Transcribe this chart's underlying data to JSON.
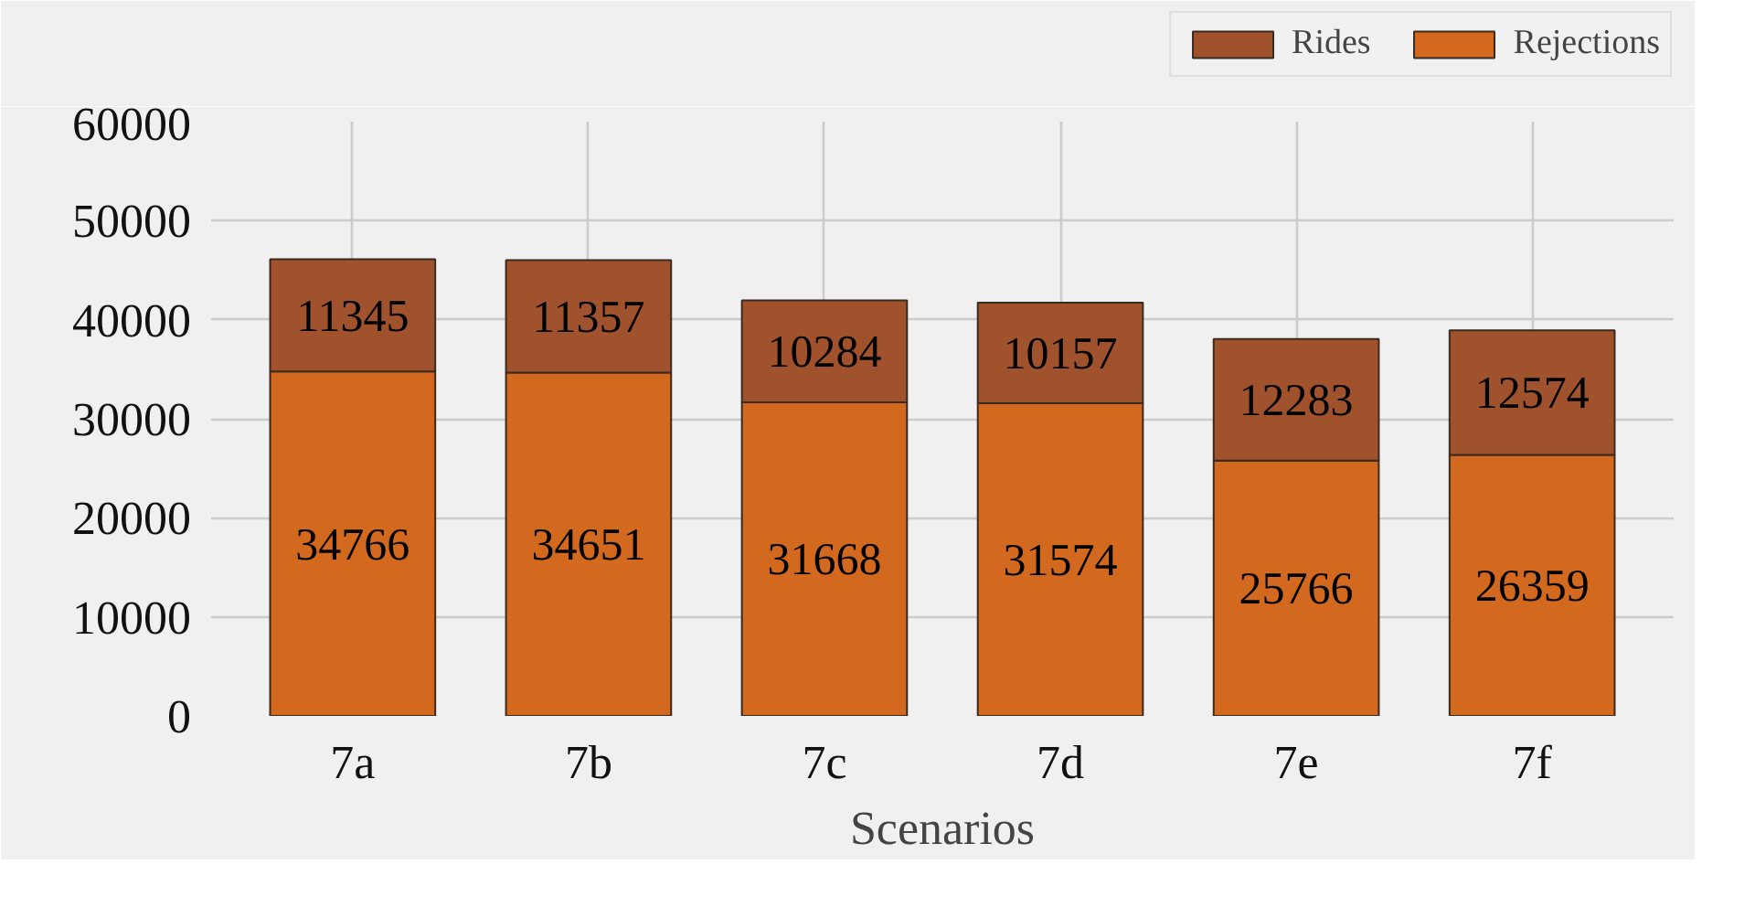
{
  "chart_data": {
    "type": "bar",
    "stacked": true,
    "xlabel": "Scenarios",
    "categories": [
      "7a",
      "7b",
      "7c",
      "7d",
      "7e",
      "7f"
    ],
    "series": [
      {
        "name": "Rejections",
        "color": "#d2691e",
        "values": [
          34766,
          34651,
          31668,
          31574,
          25766,
          26359
        ]
      },
      {
        "name": "Rides",
        "color": "#a0522d",
        "values": [
          11345,
          11357,
          10284,
          10157,
          12283,
          12574
        ]
      }
    ],
    "ylim": [
      0,
      60000
    ],
    "yticks": [
      0,
      10000,
      20000,
      30000,
      40000,
      50000,
      60000
    ],
    "grid": true,
    "legend": "top right",
    "data_labels": true
  }
}
